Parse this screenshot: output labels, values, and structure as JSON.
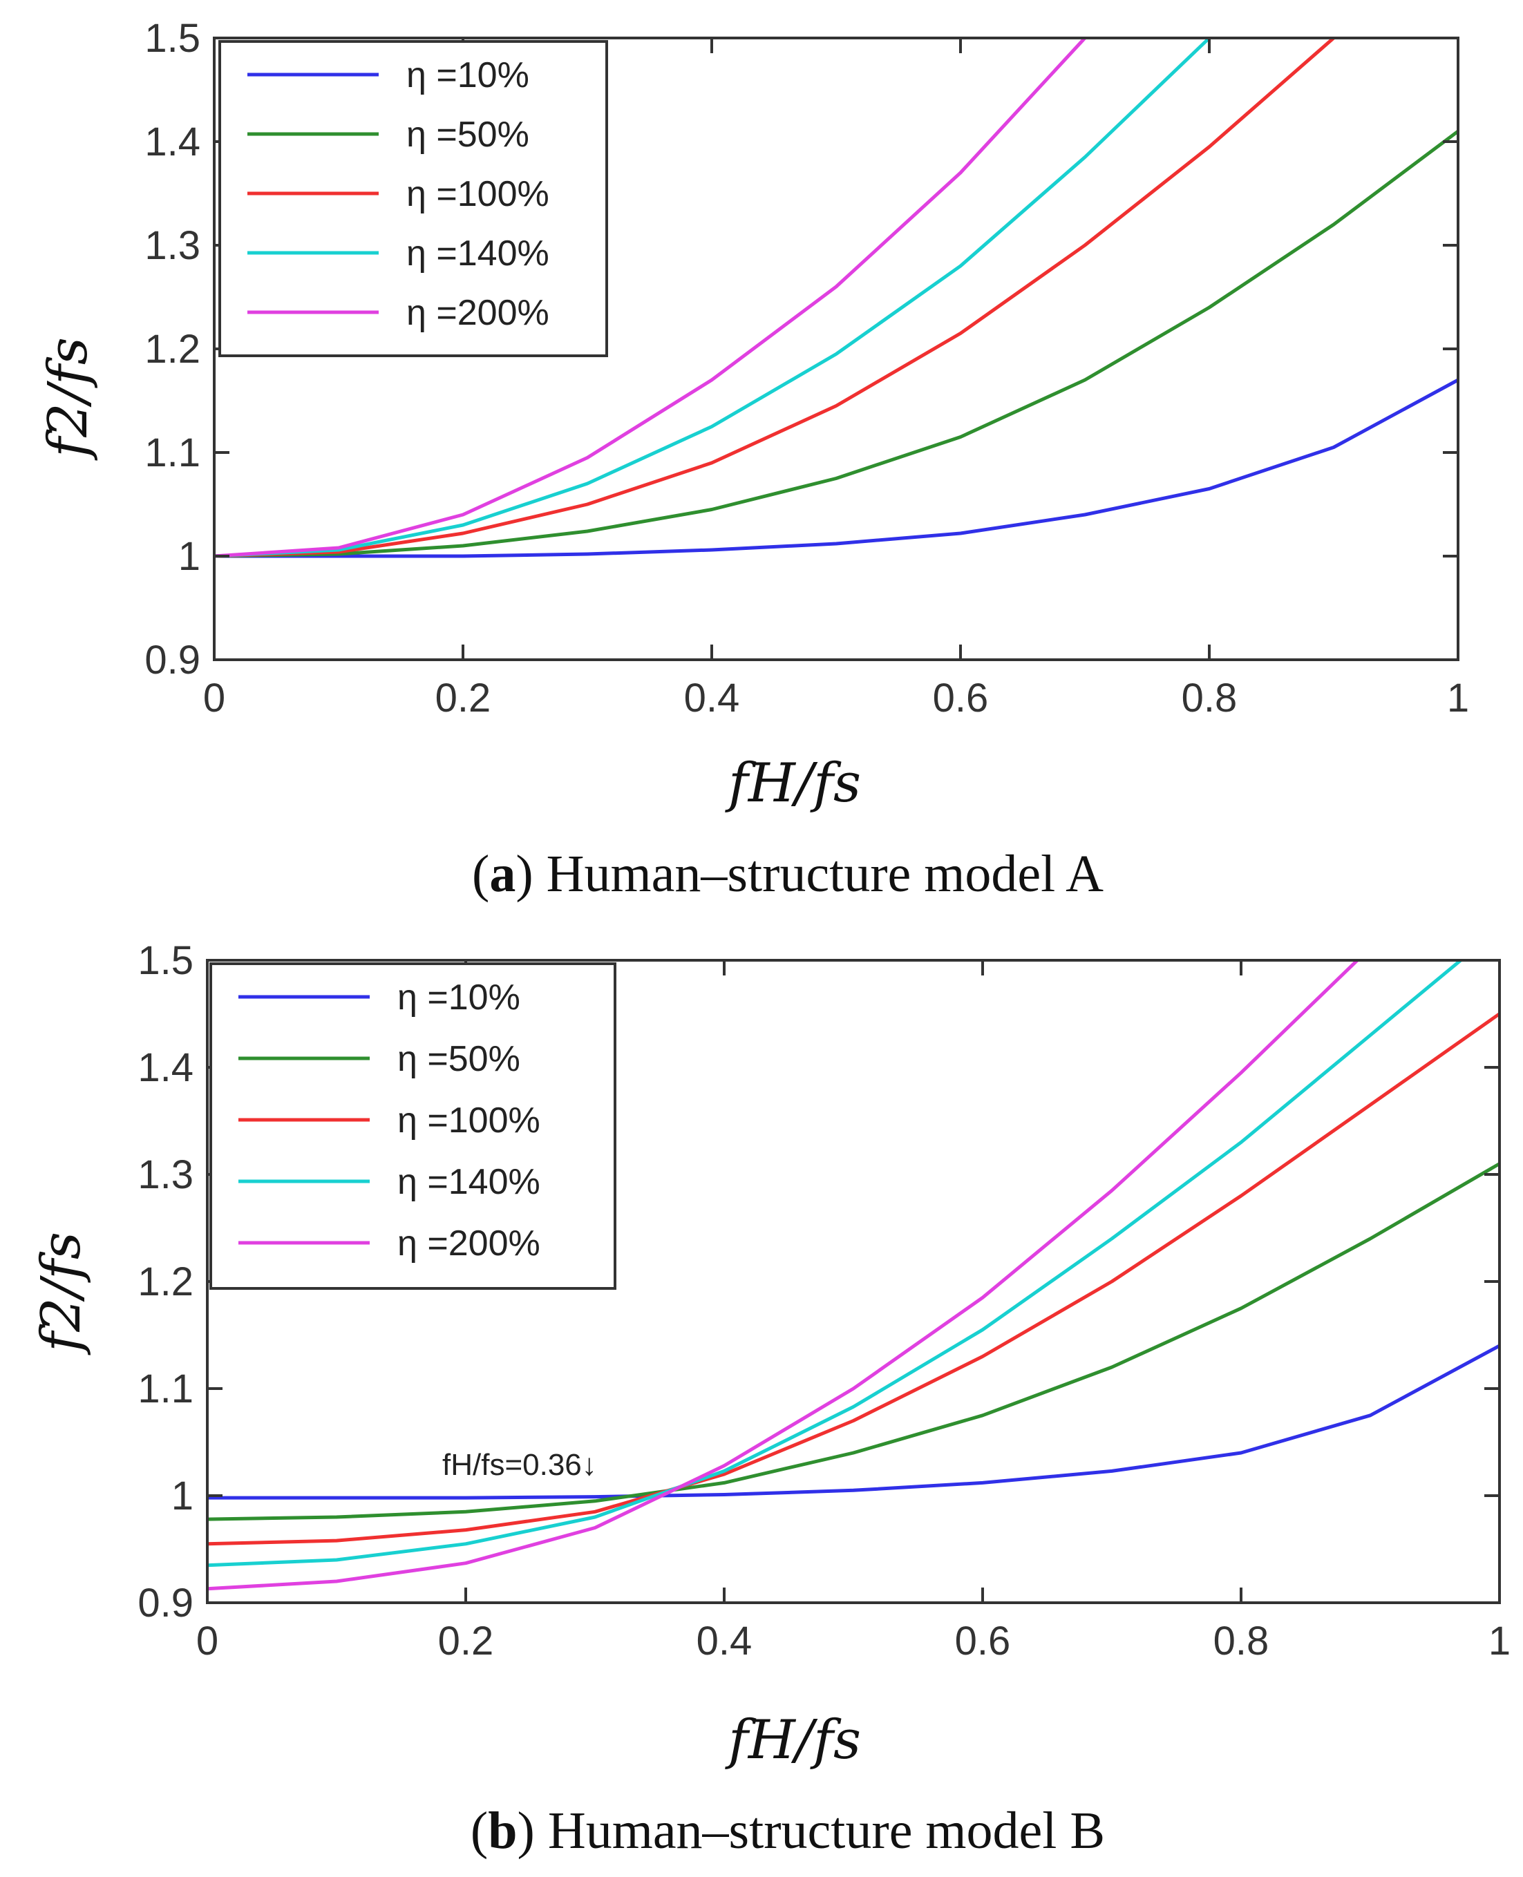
{
  "chart_data": [
    {
      "type": "line",
      "caption_label": "a",
      "caption_text": "Human–structure model A",
      "xlabel": "fH/fs",
      "ylabel": "f2/fs",
      "xlim": [
        0,
        1
      ],
      "ylim": [
        0.9,
        1.5
      ],
      "xticks": [
        "0",
        "0.2",
        "0.4",
        "0.6",
        "0.8",
        "1"
      ],
      "yticks": [
        "0.9",
        "1",
        "1.1",
        "1.2",
        "1.3",
        "1.4",
        "1.5"
      ],
      "legend_position": "top-left",
      "series": [
        {
          "name": "η =10%",
          "color": "#3030e8",
          "x": [
            0,
            0.1,
            0.2,
            0.3,
            0.4,
            0.5,
            0.6,
            0.7,
            0.8,
            0.9,
            1.0
          ],
          "values": [
            1.0,
            1.0,
            1.0,
            1.002,
            1.006,
            1.012,
            1.022,
            1.04,
            1.065,
            1.105,
            1.17
          ]
        },
        {
          "name": "η =50%",
          "color": "#2f8f2f",
          "x": [
            0,
            0.1,
            0.2,
            0.3,
            0.4,
            0.5,
            0.6,
            0.7,
            0.8,
            0.9,
            1.0
          ],
          "values": [
            1.0,
            1.002,
            1.01,
            1.024,
            1.045,
            1.075,
            1.115,
            1.17,
            1.24,
            1.32,
            1.41
          ]
        },
        {
          "name": "η =100%",
          "color": "#f03030",
          "x": [
            0,
            0.1,
            0.2,
            0.3,
            0.4,
            0.5,
            0.6,
            0.7,
            0.8,
            0.9
          ],
          "values": [
            1.0,
            1.004,
            1.022,
            1.05,
            1.09,
            1.145,
            1.215,
            1.3,
            1.395,
            1.5
          ]
        },
        {
          "name": "η =140%",
          "color": "#18d0d0",
          "x": [
            0,
            0.1,
            0.2,
            0.3,
            0.4,
            0.5,
            0.6,
            0.7,
            0.8
          ],
          "values": [
            1.0,
            1.006,
            1.03,
            1.07,
            1.125,
            1.195,
            1.28,
            1.385,
            1.5
          ]
        },
        {
          "name": "η =200%",
          "color": "#e040e0",
          "x": [
            0,
            0.1,
            0.2,
            0.3,
            0.4,
            0.5,
            0.6,
            0.7
          ],
          "values": [
            1.0,
            1.008,
            1.04,
            1.095,
            1.17,
            1.26,
            1.37,
            1.5
          ]
        }
      ]
    },
    {
      "type": "line",
      "caption_label": "b",
      "caption_text": "Human–structure model B",
      "xlabel": "fH/fs",
      "ylabel": "f2/fs",
      "xlim": [
        0,
        1
      ],
      "ylim": [
        0.9,
        1.5
      ],
      "xticks": [
        "0",
        "0.2",
        "0.4",
        "0.6",
        "0.8",
        "1"
      ],
      "yticks": [
        "0.9",
        "1",
        "1.1",
        "1.2",
        "1.3",
        "1.4",
        "1.5"
      ],
      "legend_position": "top-left",
      "annotation": {
        "text": "fH/fs=0.36↓",
        "x": 0.36,
        "y": 1.0
      },
      "series": [
        {
          "name": "η =10%",
          "color": "#3030e8",
          "x": [
            0,
            0.1,
            0.2,
            0.3,
            0.4,
            0.5,
            0.6,
            0.7,
            0.8,
            0.9,
            1.0
          ],
          "values": [
            0.998,
            0.998,
            0.998,
            0.999,
            1.001,
            1.005,
            1.012,
            1.023,
            1.04,
            1.075,
            1.14
          ]
        },
        {
          "name": "η =50%",
          "color": "#2f8f2f",
          "x": [
            0,
            0.1,
            0.2,
            0.3,
            0.4,
            0.5,
            0.6,
            0.7,
            0.8,
            0.9,
            1.0
          ],
          "values": [
            0.978,
            0.98,
            0.985,
            0.995,
            1.012,
            1.04,
            1.075,
            1.12,
            1.175,
            1.24,
            1.31
          ]
        },
        {
          "name": "η =100%",
          "color": "#f03030",
          "x": [
            0,
            0.1,
            0.2,
            0.3,
            0.4,
            0.5,
            0.6,
            0.7,
            0.8,
            0.9,
            1.0
          ],
          "values": [
            0.955,
            0.958,
            0.968,
            0.985,
            1.02,
            1.07,
            1.13,
            1.2,
            1.28,
            1.365,
            1.45
          ]
        },
        {
          "name": "η =140%",
          "color": "#18d0d0",
          "x": [
            0,
            0.1,
            0.2,
            0.3,
            0.4,
            0.5,
            0.6,
            0.7,
            0.8,
            0.9,
            0.97
          ],
          "values": [
            0.935,
            0.94,
            0.955,
            0.98,
            1.023,
            1.083,
            1.155,
            1.24,
            1.33,
            1.43,
            1.5
          ]
        },
        {
          "name": "η =200%",
          "color": "#e040e0",
          "x": [
            0,
            0.1,
            0.2,
            0.3,
            0.4,
            0.5,
            0.6,
            0.7,
            0.8,
            0.89
          ],
          "values": [
            0.913,
            0.92,
            0.937,
            0.97,
            1.028,
            1.1,
            1.185,
            1.285,
            1.395,
            1.5
          ]
        }
      ]
    }
  ]
}
